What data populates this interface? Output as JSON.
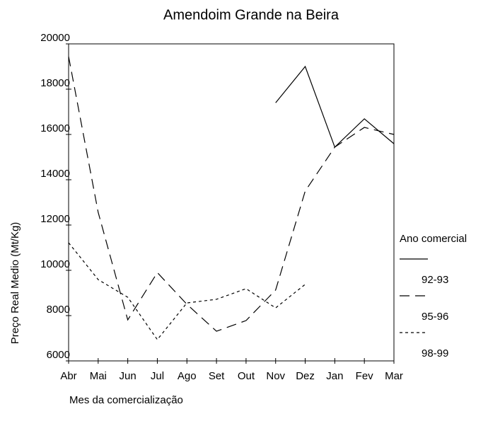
{
  "chart_data": {
    "type": "line",
    "title": "Amendoim Grande na Beira",
    "x_label": "Mes da comercialização",
    "y_label": "Preço Real Medio (Mt/Kg)",
    "categories": [
      "Abr",
      "Mai",
      "Jun",
      "Jul",
      "Ago",
      "Set",
      "Out",
      "Nov",
      "Dez",
      "Jan",
      "Fev",
      "Mar"
    ],
    "ylim": [
      6000,
      20000
    ],
    "yticks": [
      6000,
      8000,
      10000,
      12000,
      14000,
      16000,
      18000,
      20000
    ],
    "legend_title": "Ano comercial",
    "series": [
      {
        "name": "92-93",
        "color": "#000000",
        "dash": "solid",
        "values": [
          null,
          null,
          null,
          null,
          null,
          null,
          null,
          17400,
          19000,
          15440,
          16690,
          15590
        ]
      },
      {
        "name": "95-96",
        "color": "#000000",
        "dash": "dashed",
        "values": [
          19440,
          12560,
          7810,
          9900,
          8500,
          7310,
          7780,
          9130,
          13500,
          15440,
          16310,
          16000
        ]
      },
      {
        "name": "98-99",
        "color": "#000000",
        "dash": "dotted",
        "values": [
          11220,
          9590,
          8810,
          6940,
          8560,
          8720,
          9190,
          8340,
          9380,
          null,
          null,
          null
        ]
      }
    ]
  }
}
